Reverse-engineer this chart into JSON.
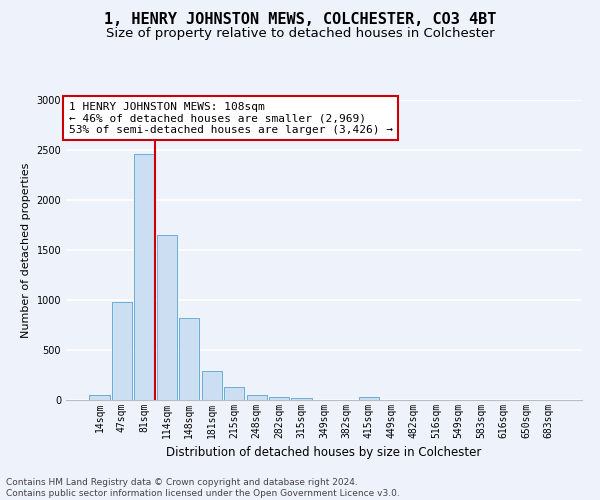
{
  "title": "1, HENRY JOHNSTON MEWS, COLCHESTER, CO3 4BT",
  "subtitle": "Size of property relative to detached houses in Colchester",
  "xlabel": "Distribution of detached houses by size in Colchester",
  "ylabel": "Number of detached properties",
  "bar_labels": [
    "14sqm",
    "47sqm",
    "81sqm",
    "114sqm",
    "148sqm",
    "181sqm",
    "215sqm",
    "248sqm",
    "282sqm",
    "315sqm",
    "349sqm",
    "382sqm",
    "415sqm",
    "449sqm",
    "482sqm",
    "516sqm",
    "549sqm",
    "583sqm",
    "616sqm",
    "650sqm",
    "683sqm"
  ],
  "bar_values": [
    50,
    980,
    2460,
    1650,
    820,
    290,
    135,
    55,
    35,
    20,
    0,
    0,
    35,
    0,
    0,
    0,
    0,
    0,
    0,
    0,
    0
  ],
  "bar_color": "#ccdff2",
  "bar_edge_color": "#6aaed6",
  "vline_x_index": 2,
  "vline_color": "#cc0000",
  "annotation_text": "1 HENRY JOHNSTON MEWS: 108sqm\n← 46% of detached houses are smaller (2,969)\n53% of semi-detached houses are larger (3,426) →",
  "annotation_box_facecolor": "#ffffff",
  "annotation_box_edgecolor": "#cc0000",
  "ylim": [
    0,
    3000
  ],
  "yticks": [
    0,
    500,
    1000,
    1500,
    2000,
    2500,
    3000
  ],
  "background_color": "#eef2fb",
  "grid_color": "#ffffff",
  "footer_line1": "Contains HM Land Registry data © Crown copyright and database right 2024.",
  "footer_line2": "Contains public sector information licensed under the Open Government Licence v3.0.",
  "title_fontsize": 11,
  "subtitle_fontsize": 9.5,
  "xlabel_fontsize": 8.5,
  "ylabel_fontsize": 8,
  "tick_fontsize": 7,
  "annotation_fontsize": 8,
  "footer_fontsize": 6.5
}
